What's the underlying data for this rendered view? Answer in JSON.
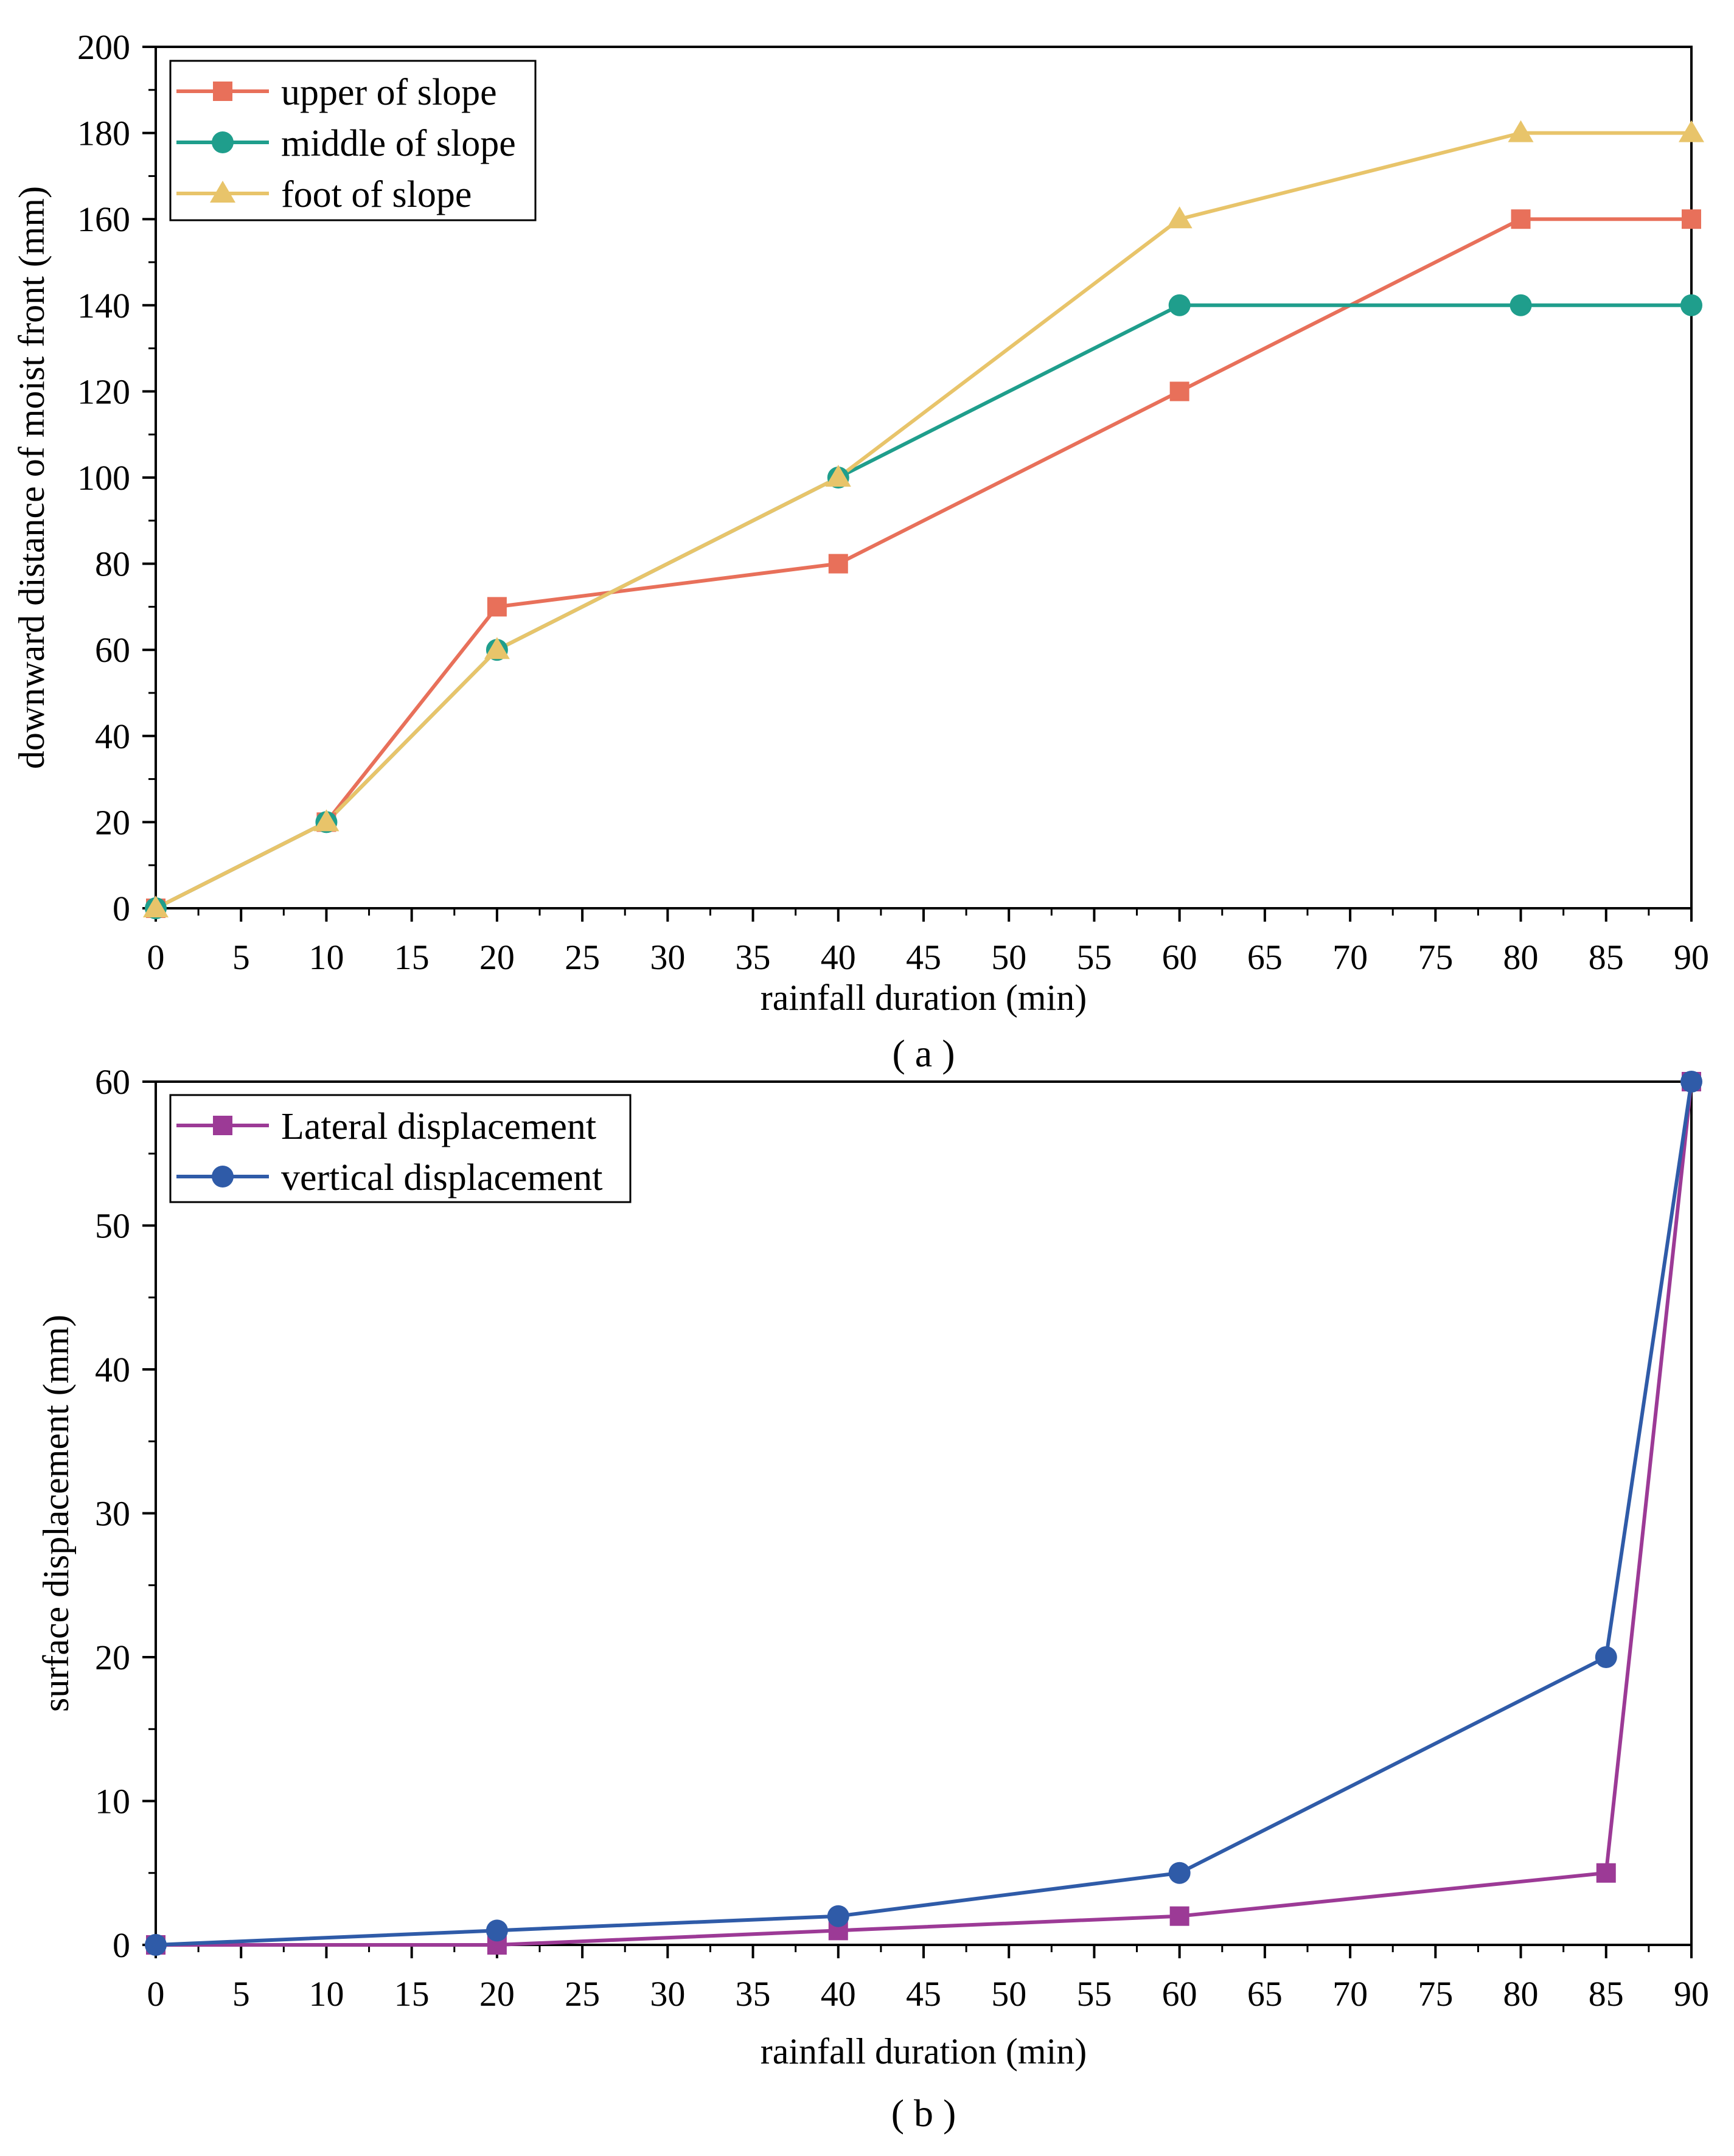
{
  "chart_data": [
    {
      "type": "line",
      "caption": "( a )",
      "xlabel": "rainfall duration (min)",
      "ylabel": "downward distance of moist front (mm)",
      "xlim": [
        0,
        90
      ],
      "ylim": [
        0,
        200
      ],
      "xticks": [
        "0",
        "5",
        "10",
        "15",
        "20",
        "25",
        "30",
        "35",
        "40",
        "45",
        "50",
        "55",
        "60",
        "65",
        "70",
        "75",
        "80",
        "85",
        "90"
      ],
      "yticks": [
        "0",
        "20",
        "40",
        "60",
        "80",
        "100",
        "120",
        "140",
        "160",
        "180",
        "200"
      ],
      "legend_position": "top-left",
      "grid": false,
      "x": [
        0,
        10,
        20,
        40,
        60,
        80,
        90
      ],
      "series": [
        {
          "name": "upper of slope",
          "marker": "square",
          "color": "#e8705a",
          "values": [
            0,
            20,
            70,
            80,
            120,
            160,
            160
          ]
        },
        {
          "name": "middle of slope",
          "marker": "circle",
          "color": "#1f9e8c",
          "values": [
            0,
            20,
            60,
            100,
            140,
            140,
            140
          ]
        },
        {
          "name": "foot of slope",
          "marker": "triangle",
          "color": "#e8c46a",
          "values": [
            0,
            20,
            60,
            100,
            160,
            180,
            180
          ]
        }
      ]
    },
    {
      "type": "line",
      "caption": "( b )",
      "xlabel": "rainfall duration (min)",
      "ylabel": "surface displacement (mm)",
      "xlim": [
        0,
        90
      ],
      "ylim": [
        0,
        60
      ],
      "xticks": [
        "0",
        "5",
        "10",
        "15",
        "20",
        "25",
        "30",
        "35",
        "40",
        "45",
        "50",
        "55",
        "60",
        "65",
        "70",
        "75",
        "80",
        "85",
        "90"
      ],
      "yticks": [
        "0",
        "10",
        "20",
        "30",
        "40",
        "50",
        "60"
      ],
      "legend_position": "top-left",
      "grid": false,
      "x": [
        0,
        20,
        40,
        60,
        85,
        90
      ],
      "series": [
        {
          "name": "Lateral displacement",
          "marker": "square",
          "color": "#9c3a96",
          "values": [
            0,
            0,
            1,
            2,
            5,
            60
          ]
        },
        {
          "name": "vertical displacement",
          "marker": "circle",
          "color": "#2f5ba8",
          "values": [
            0,
            1,
            2,
            5,
            20,
            60
          ]
        }
      ]
    }
  ]
}
